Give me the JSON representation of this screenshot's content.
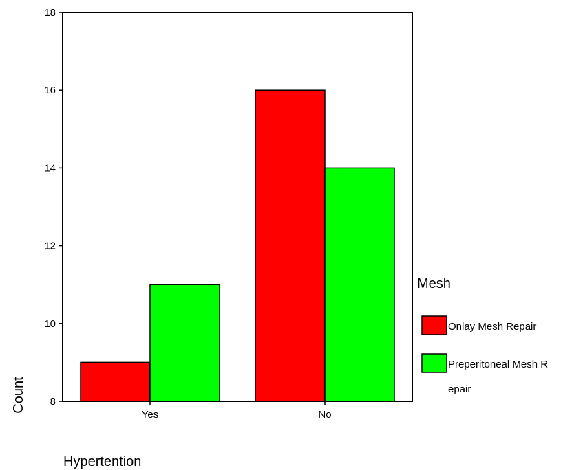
{
  "chart_data": {
    "type": "bar",
    "categories": [
      "Yes",
      "No"
    ],
    "series": [
      {
        "name": "Onlay Mesh Repair",
        "values": [
          9,
          16
        ],
        "color": "#ff0000"
      },
      {
        "name": "Preperitoneal Mesh Repair",
        "values": [
          11,
          14
        ],
        "color": "#00ff00"
      }
    ],
    "xlabel": "Hypertention",
    "ylabel": "Count",
    "ylim": [
      8,
      18
    ],
    "yticks": [
      8,
      10,
      12,
      14,
      16,
      18
    ],
    "grid": false,
    "legend_title": "Mesh",
    "legend_placement": "right",
    "legend_labels": [
      [
        "Onlay Mesh Repair"
      ],
      [
        "Preperitoneal Mesh R",
        "epair"
      ]
    ]
  }
}
